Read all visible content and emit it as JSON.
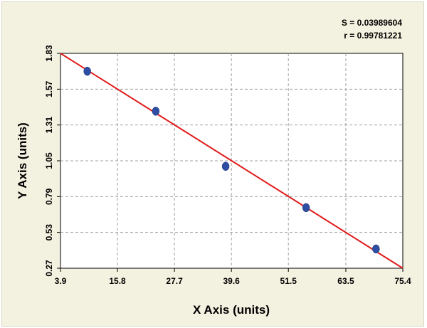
{
  "stats": {
    "s": "S = 0.03989604",
    "r": "r = 0.99781221"
  },
  "chart_data": {
    "type": "scatter",
    "xlabel": "X Axis (units)",
    "ylabel": "Y Axis (units)",
    "xlim": [
      3.9,
      75.4
    ],
    "ylim": [
      0.27,
      1.83
    ],
    "xticks": [
      "3.9",
      "15.8",
      "27.7",
      "39.6",
      "51.5",
      "63.5",
      "75.4"
    ],
    "yticks": [
      "1.83",
      "1.57",
      "1.31",
      "1.05",
      "0.79",
      "0.53",
      "0.27"
    ],
    "grid": true,
    "points": [
      {
        "x": 9.5,
        "y": 1.7
      },
      {
        "x": 23.8,
        "y": 1.41
      },
      {
        "x": 38.4,
        "y": 1.01
      },
      {
        "x": 55.2,
        "y": 0.71
      },
      {
        "x": 69.8,
        "y": 0.41
      }
    ],
    "fit_line": {
      "x": [
        3.9,
        75.4
      ],
      "y": [
        1.83,
        0.27
      ]
    },
    "colors": {
      "point": "#2e4ea3",
      "line": "#e01b1b",
      "grid": "#a0a0a0",
      "background": "#f3f1df",
      "plot": "#ffffff"
    }
  }
}
